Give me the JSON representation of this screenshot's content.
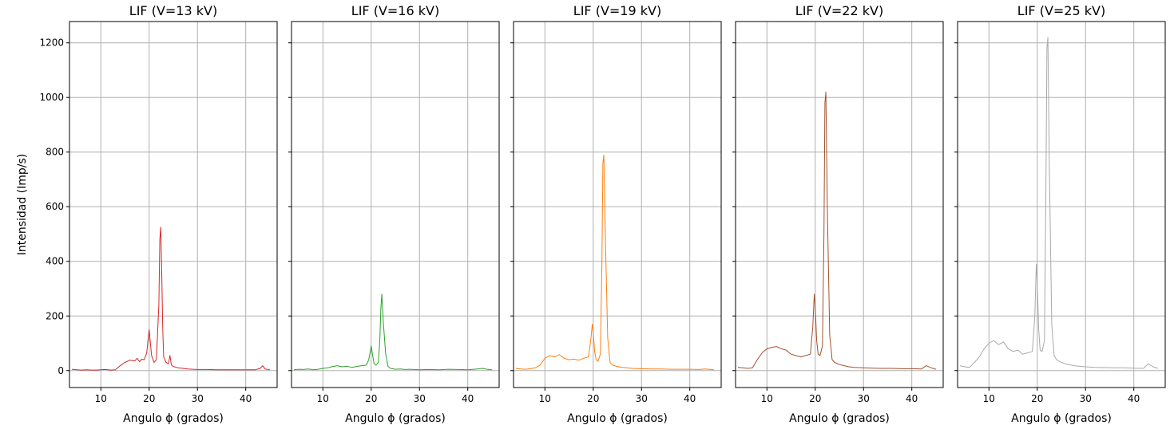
{
  "chart_data": [
    {
      "type": "line",
      "title": "LIF (V=13 kV)",
      "xlabel": "Angulo ϕ (grados)",
      "ylabel": "Intensidad (Imp/s)",
      "xlim": [
        3.5,
        46.5
      ],
      "ylim": [
        -62,
        1278
      ],
      "xticks": [
        10,
        20,
        30,
        40
      ],
      "yticks": [
        0,
        200,
        400,
        600,
        800,
        1000,
        1200
      ],
      "grid": true,
      "series": [
        {
          "color": "#d62728",
          "x": [
            4,
            5,
            6,
            7,
            8,
            9,
            10,
            11,
            12,
            13,
            14,
            15,
            16,
            17,
            17.5,
            18,
            18.5,
            19,
            19.5,
            19.8,
            20,
            20.2,
            20.5,
            21,
            21.5,
            22,
            22.2,
            22.4,
            22.6,
            22.8,
            23,
            23.5,
            24,
            24.3,
            24.6,
            25,
            26,
            27,
            28,
            29,
            30,
            32,
            34,
            36,
            38,
            40,
            42,
            43,
            43.5,
            44,
            45
          ],
          "y": [
            5,
            3,
            2,
            3,
            2,
            2,
            3,
            4,
            2,
            3,
            18,
            30,
            38,
            35,
            45,
            33,
            42,
            40,
            65,
            120,
            150,
            110,
            55,
            30,
            40,
            240,
            480,
            525,
            360,
            160,
            50,
            30,
            25,
            55,
            20,
            15,
            10,
            8,
            6,
            5,
            4,
            4,
            3,
            3,
            3,
            3,
            3,
            8,
            18,
            6,
            3
          ]
        }
      ]
    },
    {
      "type": "line",
      "title": "LIF (V=16 kV)",
      "xlabel": "Angulo ϕ (grados)",
      "xlim": [
        3.5,
        46.5
      ],
      "ylim": [
        -62,
        1278
      ],
      "xticks": [
        10,
        20,
        30,
        40
      ],
      "yticks": [
        0,
        200,
        400,
        600,
        800,
        1000,
        1200
      ],
      "grid": true,
      "series": [
        {
          "color": "#2ca02c",
          "x": [
            4,
            5,
            6,
            7,
            8,
            9,
            10,
            11,
            12,
            13,
            14,
            15,
            16,
            17,
            18,
            19,
            19.5,
            19.8,
            20,
            20.3,
            20.6,
            21,
            21.5,
            21.8,
            22,
            22.2,
            22.5,
            23,
            23.5,
            24,
            25,
            26,
            27,
            28,
            30,
            32,
            34,
            36,
            38,
            40,
            42,
            43,
            44,
            45
          ],
          "y": [
            3,
            5,
            4,
            6,
            3,
            5,
            8,
            10,
            15,
            18,
            14,
            16,
            12,
            15,
            18,
            20,
            40,
            70,
            90,
            55,
            25,
            20,
            30,
            120,
            230,
            280,
            180,
            60,
            15,
            8,
            5,
            6,
            4,
            5,
            3,
            4,
            3,
            5,
            4,
            3,
            6,
            8,
            5,
            3
          ]
        }
      ]
    },
    {
      "type": "line",
      "title": "LIF (V=19 kV)",
      "xlabel": "Angulo ϕ (grados)",
      "xlim": [
        3.5,
        46.5
      ],
      "ylim": [
        -62,
        1278
      ],
      "xticks": [
        10,
        20,
        30,
        40
      ],
      "yticks": [
        0,
        200,
        400,
        600,
        800,
        1000,
        1200
      ],
      "grid": true,
      "series": [
        {
          "color": "#ff7f0e",
          "x": [
            4,
            5,
            6,
            7,
            8,
            9,
            10,
            11,
            12,
            13,
            14,
            15,
            16,
            17,
            18,
            19,
            19.5,
            19.8,
            20,
            20.3,
            20.6,
            21,
            21.5,
            21.8,
            22,
            22.2,
            22.5,
            23,
            23.5,
            24,
            25,
            26,
            27,
            28,
            30,
            32,
            34,
            36,
            38,
            40,
            42,
            43,
            44,
            45
          ],
          "y": [
            8,
            6,
            5,
            7,
            10,
            20,
            45,
            55,
            50,
            58,
            45,
            40,
            42,
            38,
            45,
            50,
            110,
            170,
            140,
            70,
            40,
            35,
            60,
            400,
            760,
            790,
            500,
            120,
            30,
            20,
            15,
            12,
            10,
            8,
            7,
            6,
            6,
            5,
            5,
            5,
            4,
            6,
            5,
            3
          ]
        }
      ]
    },
    {
      "type": "line",
      "title": "LIF (V=22 kV)",
      "xlabel": "Angulo ϕ (grados)",
      "xlim": [
        3.5,
        46.5
      ],
      "ylim": [
        -62,
        1278
      ],
      "xticks": [
        10,
        20,
        30,
        40
      ],
      "yticks": [
        0,
        200,
        400,
        600,
        800,
        1000,
        1200
      ],
      "grid": true,
      "series": [
        {
          "color": "#a0522d",
          "x": [
            4,
            5,
            6,
            7,
            8,
            9,
            10,
            11,
            12,
            13,
            14,
            15,
            16,
            17,
            18,
            19,
            19.5,
            19.8,
            20,
            20.3,
            20.6,
            21,
            21.5,
            21.8,
            22,
            22.2,
            22.5,
            23,
            23.5,
            24,
            25,
            26,
            27,
            28,
            30,
            32,
            34,
            36,
            38,
            40,
            42,
            43,
            44,
            45
          ],
          "y": [
            12,
            10,
            8,
            10,
            40,
            65,
            80,
            85,
            88,
            80,
            75,
            60,
            55,
            50,
            55,
            60,
            160,
            280,
            230,
            110,
            60,
            55,
            90,
            500,
            980,
            1020,
            600,
            130,
            40,
            30,
            22,
            18,
            14,
            12,
            10,
            9,
            8,
            8,
            7,
            7,
            6,
            18,
            10,
            5
          ]
        }
      ]
    },
    {
      "type": "line",
      "title": "LIF (V=25 kV)",
      "xlabel": "Angulo ϕ (grados)",
      "xlim": [
        3.5,
        46.5
      ],
      "ylim": [
        -62,
        1278
      ],
      "xticks": [
        10,
        20,
        30,
        40
      ],
      "yticks": [
        0,
        200,
        400,
        600,
        800,
        1000,
        1200
      ],
      "grid": true,
      "series": [
        {
          "color": "#a9a9a9",
          "x": [
            4,
            5,
            6,
            7,
            8,
            9,
            10,
            11,
            12,
            13,
            14,
            15,
            16,
            17,
            18,
            19,
            19.5,
            19.8,
            20,
            20.3,
            20.6,
            21,
            21.5,
            21.8,
            22,
            22.2,
            22.5,
            23,
            23.5,
            24,
            25,
            26,
            27,
            28,
            30,
            32,
            34,
            36,
            38,
            40,
            42,
            43,
            44,
            45
          ],
          "y": [
            18,
            14,
            12,
            30,
            50,
            80,
            100,
            110,
            95,
            105,
            80,
            70,
            75,
            60,
            65,
            70,
            200,
            390,
            320,
            150,
            75,
            70,
            110,
            700,
            1180,
            1220,
            750,
            170,
            55,
            40,
            30,
            24,
            20,
            17,
            14,
            12,
            11,
            10,
            10,
            9,
            8,
            25,
            14,
            8
          ]
        }
      ]
    }
  ]
}
